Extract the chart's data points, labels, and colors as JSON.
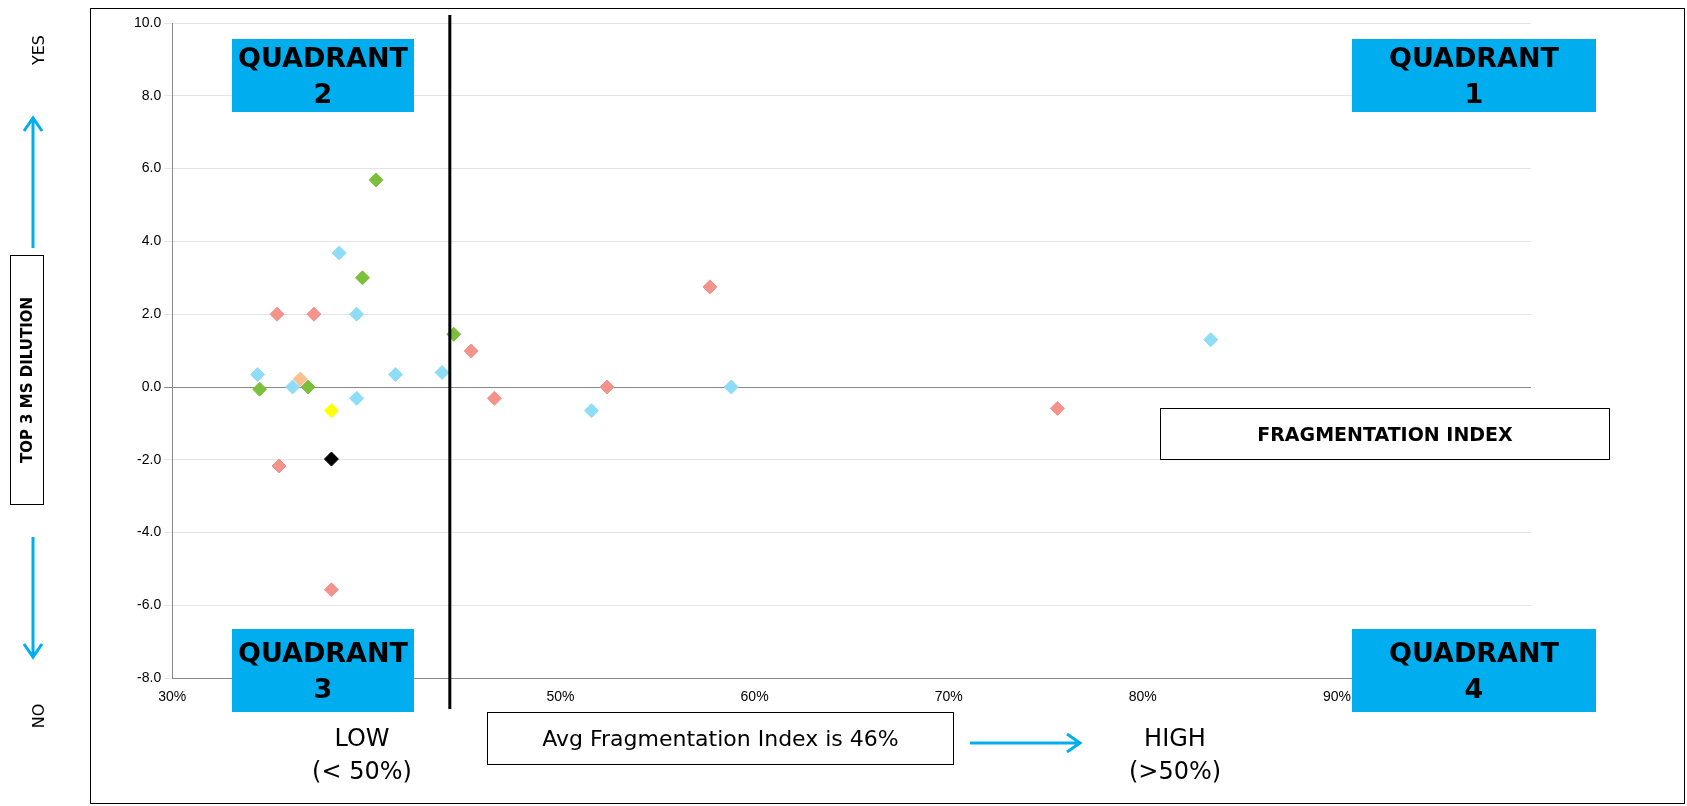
{
  "chart_data": {
    "type": "scatter",
    "xlabel": "FRAGMENTATION INDEX",
    "xlim": [
      30,
      100
    ],
    "xticks": [
      {
        "value": 30,
        "label": "30%"
      },
      {
        "value": 50,
        "label": "50%"
      },
      {
        "value": 60,
        "label": "60%"
      },
      {
        "value": 70,
        "label": "70%"
      },
      {
        "value": 80,
        "label": "80%"
      },
      {
        "value": 90,
        "label": "90%"
      }
    ],
    "ylim": [
      -8,
      10
    ],
    "yticks": [
      {
        "value": -8,
        "label": "-8.0"
      },
      {
        "value": -6,
        "label": "-6.0"
      },
      {
        "value": -4,
        "label": "-4.0"
      },
      {
        "value": -2,
        "label": "-2.0"
      },
      {
        "value": 0,
        "label": "0.0"
      },
      {
        "value": 2,
        "label": "2.0"
      },
      {
        "value": 4,
        "label": "4.0"
      },
      {
        "value": 6,
        "label": "6.0"
      },
      {
        "value": 8,
        "label": "8.0"
      },
      {
        "value": 10,
        "label": "10.0"
      }
    ],
    "grid": "y",
    "legend": false,
    "marker": "diamond",
    "series": [
      {
        "color": "#f4928c",
        "x": [
          35.4,
          35.5,
          37.3,
          38.2,
          45.4,
          46.6,
          52.4,
          57.7,
          75.6
        ],
        "values": [
          2.0,
          -2.17,
          2.0,
          -5.57,
          0.99,
          -0.31,
          0,
          2.75,
          -0.59
        ]
      },
      {
        "color": "#8fdcf6",
        "x": [
          34.4,
          36.2,
          38.6,
          39.5,
          39.5,
          41.5,
          43.9,
          51.6,
          58.8,
          83.5
        ],
        "values": [
          0.34,
          0,
          3.68,
          2.0,
          -0.31,
          0.34,
          0.4,
          -0.65,
          0,
          1.3
        ]
      },
      {
        "color": "#7cbf3c",
        "x": [
          34.5,
          37.0,
          39.8,
          40.5,
          44.5
        ],
        "values": [
          -0.06,
          0,
          3.0,
          5.69,
          1.45
        ]
      },
      {
        "color": "#fac090",
        "x": [
          36.6
        ],
        "values": [
          0.22
        ]
      },
      {
        "color": "#ffff00",
        "x": [
          38.2
        ],
        "values": [
          -0.65
        ]
      },
      {
        "color": "#000000",
        "x": [
          38.2
        ],
        "values": [
          -1.98
        ]
      }
    ],
    "ref_lines": [
      {
        "axis": "x",
        "value": 44.3,
        "color": "#000000"
      }
    ],
    "annotations": [
      "QUADRANT 2",
      "QUADRANT 1",
      "QUADRANT 3",
      "QUADRANT 4",
      "YES",
      "NO",
      "LOW\n(< 50%)",
      "Avg Fragmentation Index is 46%",
      "HIGH\n(>50%)",
      "TOP 3 MS DILUTION"
    ]
  }
}
